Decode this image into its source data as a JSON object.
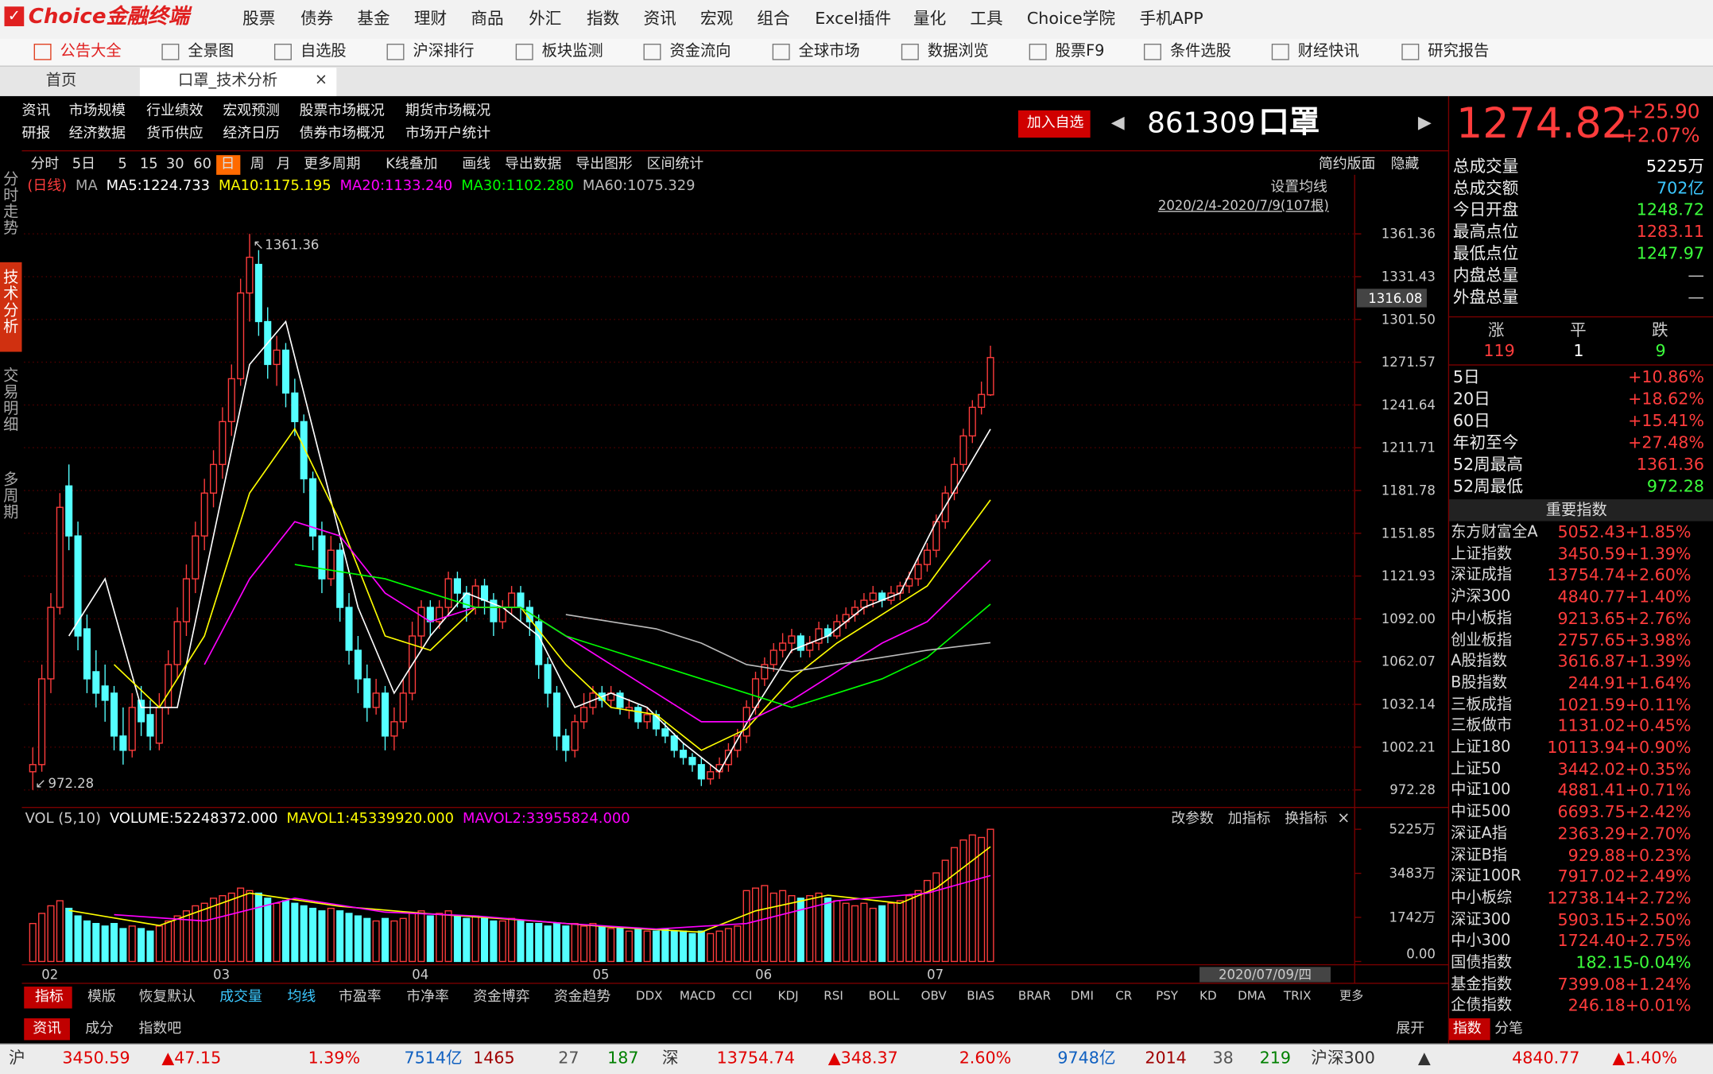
{
  "menu": {
    "logo": "Choice金融终端",
    "items": [
      "股票",
      "债券",
      "基金",
      "理财",
      "商品",
      "外汇",
      "指数",
      "资讯",
      "宏观",
      "组合",
      "Excel插件",
      "量化",
      "工具",
      "Choice学院",
      "手机APP"
    ]
  },
  "toolbar": [
    "公告大全",
    "全景图",
    "自选股",
    "沪深排行",
    "板块监测",
    "资金流向",
    "全球市场",
    "数据浏览",
    "股票F9",
    "条件选股",
    "财经快讯",
    "研究报告"
  ],
  "tabs": [
    "首页",
    "口罩_技术分析"
  ],
  "side_tabs": [
    "分时走势",
    "技术分析",
    "交易明细",
    "多周期"
  ],
  "links": [
    [
      "资讯",
      "市场规模",
      "行业绩效",
      "宏观预测",
      "股票市场概况",
      "期货市场概况"
    ],
    [
      "研报",
      "经济数据",
      "货币供应",
      "经济日历",
      "债券市场概况",
      "市场开户统计"
    ]
  ],
  "quote": {
    "add": "加入自选",
    "code": "861309",
    "name": "口罩",
    "price": "1274.82",
    "change": "+25.90",
    "pct": "+2.07%"
  },
  "periods": [
    "分时",
    "5日",
    "5",
    "15",
    "30",
    "60",
    "日",
    "周",
    "月",
    "更多周期",
    "K线叠加",
    "画线",
    "导出数据",
    "导出图形",
    "区间统计"
  ],
  "periods_right": [
    "简约版面",
    "隐藏"
  ],
  "chart_data": {
    "type": "candlestick",
    "period": "(日线)",
    "ma_label": "MA",
    "ma_legend": [
      "MA5:1224.733",
      "MA10:1175.195",
      "MA20:1133.240",
      "MA30:1102.280",
      "MA60:1075.329"
    ],
    "settings": "设置均线",
    "range_text": "2020/2/4-2020/7/9(107根)",
    "ylim": [
      963.1,
      1387.4
    ],
    "yticks": [
      1361.36,
      1331.43,
      {
        "value": 1301.5,
        "label": "1301.50"
      },
      1271.57,
      1241.64,
      1211.71,
      1181.78,
      1151.85,
      1121.93,
      {
        "value": 1092,
        "label": "1092.00"
      },
      1062.07,
      1032.14,
      1002.21,
      972.28
    ],
    "cursor_value": 1316.08,
    "grid": true,
    "up_color": "#ff3c3c",
    "down_color": "#54ffff",
    "x_labels": [
      {
        "index": 0,
        "label": "02"
      },
      {
        "index": 19,
        "label": "03"
      },
      {
        "index": 41,
        "label": "04"
      },
      {
        "index": 61,
        "label": "05"
      },
      {
        "index": 79,
        "label": "06"
      },
      {
        "index": 98,
        "label": "07"
      }
    ],
    "date_box": "2020/07/09/四",
    "ohlc": [
      [
        985,
        1002,
        972.28,
        990
      ],
      [
        990,
        1060,
        985,
        1050
      ],
      [
        1050,
        1110,
        1040,
        1100
      ],
      [
        1100,
        1180,
        1095,
        1170
      ],
      [
        1185,
        1200,
        1140,
        1150
      ],
      [
        1150,
        1160,
        1070,
        1080
      ],
      [
        1085,
        1095,
        1040,
        1050
      ],
      [
        1055,
        1070,
        1030,
        1040
      ],
      [
        1045,
        1060,
        1020,
        1035
      ],
      [
        1040,
        1045,
        1000,
        1010
      ],
      [
        1010,
        1030,
        990,
        1000
      ],
      [
        1000,
        1040,
        995,
        1030
      ],
      [
        1035,
        1045,
        1010,
        1020
      ],
      [
        1025,
        1035,
        1000,
        1010
      ],
      [
        1005,
        1040,
        1000,
        1030
      ],
      [
        1030,
        1070,
        1025,
        1060
      ],
      [
        1060,
        1100,
        1050,
        1090
      ],
      [
        1090,
        1130,
        1080,
        1120
      ],
      [
        1120,
        1160,
        1110,
        1150
      ],
      [
        1150,
        1190,
        1140,
        1180
      ],
      [
        1180,
        1210,
        1170,
        1200
      ],
      [
        1200,
        1240,
        1190,
        1230
      ],
      [
        1230,
        1270,
        1220,
        1260
      ],
      [
        1260,
        1330,
        1255,
        1320
      ],
      [
        1320,
        1361.36,
        1300,
        1345
      ],
      [
        1340,
        1350,
        1290,
        1300
      ],
      [
        1300,
        1310,
        1260,
        1270
      ],
      [
        1270,
        1290,
        1255,
        1280
      ],
      [
        1280,
        1285,
        1240,
        1250
      ],
      [
        1250,
        1260,
        1220,
        1230
      ],
      [
        1230,
        1235,
        1180,
        1190
      ],
      [
        1190,
        1195,
        1140,
        1150
      ],
      [
        1150,
        1160,
        1110,
        1120
      ],
      [
        1120,
        1150,
        1115,
        1140
      ],
      [
        1140,
        1145,
        1090,
        1100
      ],
      [
        1100,
        1110,
        1060,
        1070
      ],
      [
        1070,
        1080,
        1040,
        1050
      ],
      [
        1050,
        1060,
        1020,
        1030
      ],
      [
        1030,
        1050,
        1025,
        1040
      ],
      [
        1040,
        1045,
        1000,
        1010
      ],
      [
        1010,
        1030,
        1000,
        1020
      ],
      [
        1020,
        1050,
        1015,
        1040
      ],
      [
        1040,
        1090,
        1035,
        1080
      ],
      [
        1080,
        1105,
        1070,
        1100
      ],
      [
        1100,
        1105,
        1080,
        1090
      ],
      [
        1090,
        1105,
        1085,
        1100
      ],
      [
        1100,
        1125,
        1095,
        1120
      ],
      [
        1120,
        1125,
        1100,
        1110
      ],
      [
        1110,
        1115,
        1090,
        1100
      ],
      [
        1100,
        1120,
        1095,
        1115
      ],
      [
        1115,
        1120,
        1095,
        1105
      ],
      [
        1105,
        1110,
        1080,
        1090
      ],
      [
        1090,
        1105,
        1085,
        1100
      ],
      [
        1100,
        1115,
        1095,
        1110
      ],
      [
        1110,
        1115,
        1090,
        1100
      ],
      [
        1100,
        1105,
        1080,
        1090
      ],
      [
        1090,
        1095,
        1050,
        1060
      ],
      [
        1060,
        1065,
        1030,
        1040
      ],
      [
        1040,
        1045,
        1000,
        1010
      ],
      [
        1010,
        1015,
        992,
        1000
      ],
      [
        1000,
        1025,
        995,
        1020
      ],
      [
        1020,
        1040,
        1015,
        1030
      ],
      [
        1030,
        1045,
        1025,
        1040
      ],
      [
        1040,
        1045,
        1030,
        1035
      ],
      [
        1035,
        1045,
        1030,
        1040
      ],
      [
        1040,
        1042,
        1025,
        1030
      ],
      [
        1028,
        1036,
        1022,
        1030
      ],
      [
        1030,
        1032,
        1015,
        1020
      ],
      [
        1020,
        1030,
        1015,
        1025
      ],
      [
        1025,
        1028,
        1010,
        1015
      ],
      [
        1015,
        1020,
        1005,
        1010
      ],
      [
        1010,
        1012,
        995,
        1000
      ],
      [
        1000,
        1005,
        990,
        995
      ],
      [
        995,
        998,
        985,
        990
      ],
      [
        990,
        995,
        975,
        980
      ],
      [
        980,
        990,
        976,
        985
      ],
      [
        985,
        995,
        980,
        990
      ],
      [
        990,
        1005,
        985,
        1000
      ],
      [
        1000,
        1015,
        995,
        1010
      ],
      [
        1010,
        1035,
        1005,
        1030
      ],
      [
        1030,
        1055,
        1025,
        1050
      ],
      [
        1050,
        1065,
        1045,
        1060
      ],
      [
        1060,
        1075,
        1055,
        1070
      ],
      [
        1070,
        1082,
        1065,
        1075
      ],
      [
        1075,
        1085,
        1068,
        1080
      ],
      [
        1080,
        1082,
        1065,
        1070
      ],
      [
        1070,
        1080,
        1065,
        1075
      ],
      [
        1075,
        1090,
        1070,
        1085
      ],
      [
        1085,
        1088,
        1075,
        1080
      ],
      [
        1080,
        1095,
        1078,
        1090
      ],
      [
        1090,
        1100,
        1085,
        1095
      ],
      [
        1095,
        1105,
        1090,
        1100
      ],
      [
        1100,
        1110,
        1095,
        1105
      ],
      [
        1105,
        1115,
        1100,
        1110
      ],
      [
        1110,
        1112,
        1100,
        1105
      ],
      [
        1105,
        1115,
        1102,
        1110
      ],
      [
        1110,
        1118,
        1105,
        1115
      ],
      [
        1115,
        1125,
        1110,
        1120
      ],
      [
        1120,
        1135,
        1115,
        1130
      ],
      [
        1130,
        1145,
        1125,
        1140
      ],
      [
        1140,
        1165,
        1135,
        1160
      ],
      [
        1160,
        1185,
        1155,
        1180
      ],
      [
        1180,
        1205,
        1175,
        1200
      ],
      [
        1200,
        1225,
        1195,
        1220
      ],
      [
        1220,
        1245,
        1215,
        1240
      ],
      [
        1240,
        1258,
        1235,
        1249
      ],
      [
        1248.72,
        1283.11,
        1247.97,
        1274.82
      ]
    ],
    "ma_series": [
      {
        "name": "MA5",
        "color": "#ffffff",
        "x": [
          4,
          8,
          12,
          16,
          20,
          24,
          28,
          32,
          36,
          40,
          44,
          48,
          52,
          56,
          60,
          64,
          68,
          72,
          76,
          80,
          84,
          88,
          92,
          96,
          100,
          106
        ],
        "values": [
          1080,
          1120,
          1030,
          1030,
          1150,
          1270,
          1300,
          1200,
          1100,
          1040,
          1080,
          1110,
          1100,
          1080,
          1030,
          1040,
          1030,
          1005,
          985,
          1030,
          1070,
          1080,
          1100,
          1110,
          1160,
          1224.733
        ]
      },
      {
        "name": "MA10",
        "color": "#ffff00",
        "x": [
          9,
          14,
          19,
          24,
          29,
          34,
          39,
          44,
          49,
          54,
          59,
          64,
          69,
          74,
          79,
          84,
          89,
          94,
          99,
          106
        ],
        "values": [
          1060,
          1030,
          1080,
          1180,
          1225,
          1160,
          1080,
          1070,
          1100,
          1100,
          1060,
          1030,
          1025,
          1000,
          1015,
          1050,
          1075,
          1095,
          1115,
          1175.195
        ]
      },
      {
        "name": "MA20",
        "color": "#ff00ff",
        "x": [
          19,
          24,
          29,
          34,
          39,
          44,
          49,
          54,
          59,
          64,
          69,
          74,
          79,
          84,
          89,
          94,
          99,
          106
        ],
        "values": [
          1060,
          1120,
          1160,
          1150,
          1110,
          1090,
          1100,
          1100,
          1080,
          1060,
          1040,
          1020,
          1020,
          1035,
          1055,
          1075,
          1090,
          1133.24
        ]
      },
      {
        "name": "MA30",
        "color": "#00ff00",
        "x": [
          29,
          34,
          39,
          44,
          49,
          54,
          59,
          64,
          69,
          74,
          79,
          84,
          89,
          94,
          99,
          106
        ],
        "values": [
          1130,
          1125,
          1120,
          1110,
          1100,
          1100,
          1080,
          1070,
          1060,
          1050,
          1040,
          1030,
          1040,
          1050,
          1065,
          1102.28
        ]
      },
      {
        "name": "MA60",
        "color": "#bbbbbb",
        "x": [
          59,
          64,
          69,
          74,
          79,
          84,
          89,
          94,
          99,
          106
        ],
        "values": [
          1095,
          1090,
          1085,
          1075,
          1060,
          1055,
          1060,
          1065,
          1070,
          1075.329
        ]
      }
    ],
    "volume": {
      "legend": [
        "VOL (5,10)",
        "VOLUME:52248372.000",
        "MAVOL1:45339920.000",
        "MAVOL2:33955824.000"
      ],
      "buttons": [
        "改参数",
        "加指标",
        "换指标"
      ],
      "ylim": [
        0,
        5830
      ],
      "yticks": [
        {
          "value": 5225,
          "label": "5225万"
        },
        {
          "value": 3483,
          "label": "3483万"
        },
        {
          "value": 1742,
          "label": "1742万"
        },
        {
          "value": 0,
          "label": "0.00"
        }
      ],
      "values": [
        1500,
        1900,
        2200,
        2400,
        2100,
        1800,
        1600,
        1500,
        1400,
        1500,
        1300,
        1400,
        1300,
        1200,
        1400,
        1600,
        1800,
        2000,
        2200,
        2300,
        2500,
        2600,
        2700,
        2900,
        2800,
        2700,
        2500,
        2300,
        2400,
        2300,
        2200,
        2100,
        2000,
        2100,
        2000,
        1900,
        1800,
        1700,
        1600,
        1700,
        1600,
        1700,
        1900,
        2000,
        1800,
        1900,
        2000,
        1800,
        1700,
        1800,
        1700,
        1600,
        1600,
        1700,
        1600,
        1500,
        1500,
        1400,
        1500,
        1400,
        1500,
        1400,
        1500,
        1400,
        1300,
        1300,
        1200,
        1300,
        1200,
        1200,
        1300,
        1200,
        1200,
        1100,
        1200,
        1100,
        1200,
        1300,
        1400,
        2800,
        2900,
        3000,
        2700,
        2800,
        2600,
        2500,
        2600,
        2700,
        2500,
        2400,
        2300,
        2200,
        2300,
        2100,
        2200,
        2300,
        2400,
        2600,
        2800,
        3200,
        3500,
        4000,
        4500,
        4800,
        5000,
        4900,
        5225
      ],
      "ma": [
        {
          "name": "MAVOL1",
          "color": "#ffff00",
          "x": [
            4,
            14,
            24,
            34,
            44,
            54,
            64,
            74,
            80,
            88,
            96,
            100,
            106
          ],
          "values": [
            2020,
            1420,
            2700,
            2180,
            1880,
            1640,
            1360,
            1160,
            2000,
            2620,
            2300,
            2900,
            4533.992
          ]
        },
        {
          "name": "MAVOL2",
          "color": "#ff00ff",
          "x": [
            9,
            19,
            29,
            39,
            49,
            59,
            69,
            79,
            89,
            99,
            106
          ],
          "values": [
            1850,
            1600,
            2500,
            1950,
            1800,
            1500,
            1280,
            1500,
            2400,
            2700,
            3395.5824
          ]
        }
      ]
    }
  },
  "stats": [
    [
      "总成交量",
      "5225万"
    ],
    [
      "总成交额",
      "702亿"
    ],
    [
      "今日开盘",
      "1248.72"
    ],
    [
      "最高点位",
      "1283.11"
    ],
    [
      "最低点位",
      "1247.97"
    ],
    [
      "内盘总量",
      "—"
    ],
    [
      "外盘总量",
      "—"
    ]
  ],
  "breadth": {
    "labels": [
      "涨",
      "平",
      "跌"
    ],
    "values": [
      "119",
      "1",
      "9"
    ]
  },
  "returns": [
    [
      "5日",
      "+10.86%"
    ],
    [
      "20日",
      "+18.62%"
    ],
    [
      "60日",
      "+15.41%"
    ],
    [
      "年初至今",
      "+27.48%"
    ],
    [
      "52周最高",
      "1361.36"
    ],
    [
      "52周最低",
      "972.28"
    ]
  ],
  "index_title": "重要指数",
  "indices": [
    [
      "东方财富全A",
      "5052.43+1.85%"
    ],
    [
      "上证指数",
      "3450.59+1.39%"
    ],
    [
      "深证成指",
      "13754.74+2.60%"
    ],
    [
      "沪深300",
      "4840.77+1.40%"
    ],
    [
      "中小板指",
      "9213.65+2.76%"
    ],
    [
      "创业板指",
      "2757.65+3.98%"
    ],
    [
      "A股指数",
      "3616.87+1.39%"
    ],
    [
      "B股指数",
      "244.91+1.64%"
    ],
    [
      "三板成指",
      "1021.59+0.11%"
    ],
    [
      "三板做市",
      "1131.02+0.45%"
    ],
    [
      "上证180",
      "10113.94+0.90%"
    ],
    [
      "上证50",
      "3442.02+0.35%"
    ],
    [
      "中证100",
      "4881.41+0.71%"
    ],
    [
      "中证500",
      "6693.75+2.42%"
    ],
    [
      "深证A指",
      "2363.29+2.70%"
    ],
    [
      "深证B指",
      "929.88+0.23%"
    ],
    [
      "深证100R",
      "7917.02+2.49%"
    ],
    [
      "中小板综",
      "12738.14+2.72%"
    ],
    [
      "深证300",
      "5903.15+2.50%"
    ],
    [
      "中小300",
      "1724.40+2.75%"
    ],
    [
      "国债指数",
      "182.15-0.04%"
    ],
    [
      "基金指数",
      "7399.08+1.24%"
    ],
    [
      "企债指数",
      "246.18+0.01%"
    ]
  ],
  "indicator_tabs": [
    "指标",
    "模版",
    "恢复默认",
    "成交量",
    "均线",
    "市盈率",
    "市净率",
    "资金博弈",
    "资金趋势",
    "DDX",
    "MACD",
    "CCI",
    "KDJ",
    "RSI",
    "BOLL",
    "OBV",
    "BIAS",
    "BRAR",
    "DMI",
    "CR",
    "PSY",
    "KD",
    "DMA",
    "TRIX",
    "更多"
  ],
  "info_tabs": [
    "资讯",
    "成分",
    "指数吧"
  ],
  "expand": "展开",
  "right_tabs": [
    "指数",
    "分笔"
  ],
  "status": [
    "沪",
    "3450.59",
    "▲47.15",
    "1.39%",
    "7514亿",
    "1465",
    "27",
    "187",
    "深",
    "13754.74",
    "▲348.37",
    "2.60%",
    "9748亿",
    "2014",
    "38",
    "219",
    "沪深300",
    "▲",
    "4840.77",
    "▲1.40%"
  ]
}
